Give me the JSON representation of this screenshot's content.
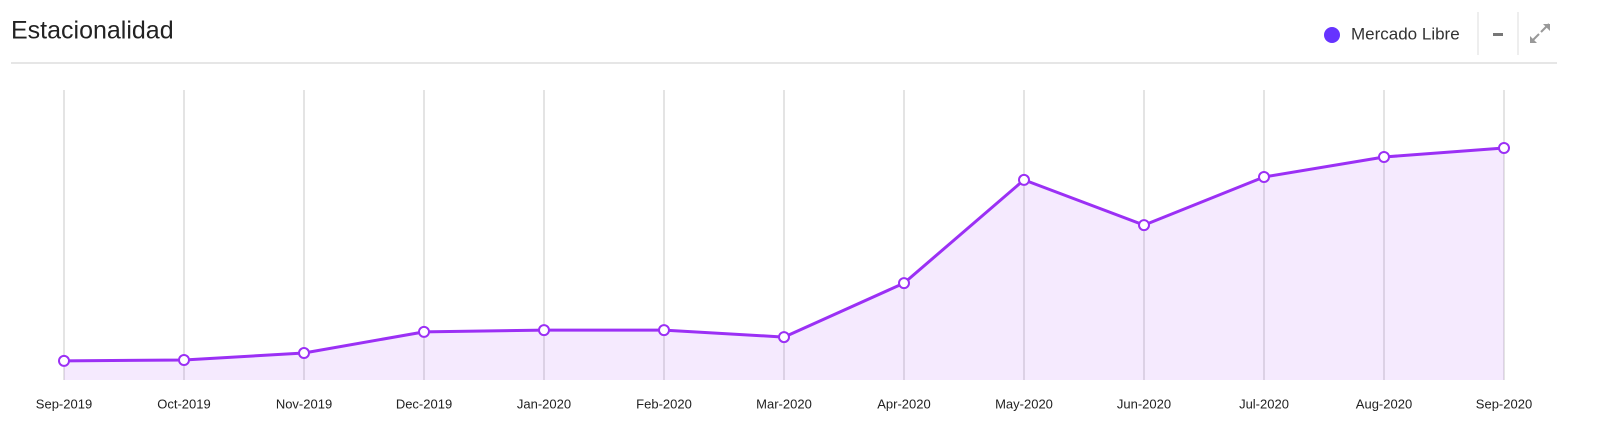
{
  "chart_data": {
    "type": "area",
    "title": "Estacionalidad",
    "categories": [
      "Sep-2019",
      "Oct-2019",
      "Nov-2019",
      "Dec-2019",
      "Jan-2020",
      "Feb-2020",
      "Mar-2020",
      "Apr-2020",
      "May-2020",
      "Jun-2020",
      "Jul-2020",
      "Aug-2020",
      "Sep-2020"
    ],
    "series": [
      {
        "name": "Mercado Libre",
        "color": "#9b30f5",
        "values": [
          6.6,
          6.9,
          9.3,
          16.6,
          17.2,
          17.2,
          14.8,
          33.4,
          69.0,
          53.4,
          70.0,
          76.9,
          80.0
        ]
      }
    ],
    "ylim": [
      0,
      100
    ],
    "grid": true
  }
}
